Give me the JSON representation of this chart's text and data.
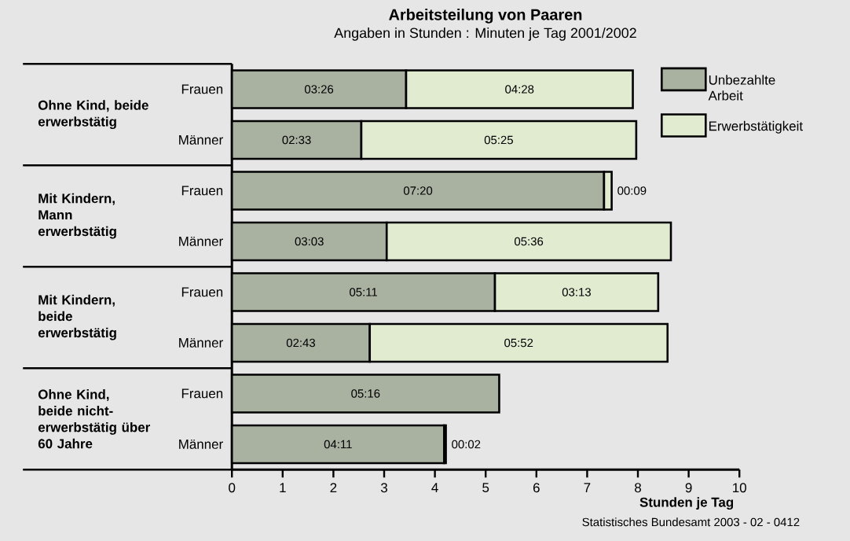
{
  "chart_data": {
    "type": "bar",
    "orientation": "horizontal",
    "stacked": true,
    "title": "Arbeitsteilung von Paaren",
    "subtitle": "Angaben in Stunden : Minuten je Tag 2001/2002",
    "xlabel": "Stunden je Tag",
    "categories": [
      "Frauen",
      "Männer",
      "Frauen",
      "Männer",
      "Frauen",
      "Männer",
      "Frauen",
      "Männer"
    ],
    "series": [
      {
        "name": "Unbezahlte Arbeit",
        "color": "#a9b1a1",
        "values": [
          3.433,
          2.55,
          7.333,
          3.05,
          5.183,
          2.717,
          5.267,
          4.183
        ],
        "value_labels": [
          "03:26",
          "02:33",
          "07:20",
          "03:03",
          "05:11",
          "02:43",
          "05:16",
          "04:11"
        ]
      },
      {
        "name": "Erwerbstätigkeit",
        "color": "#e1ebd0",
        "values": [
          4.467,
          5.417,
          0.15,
          5.6,
          3.217,
          5.867,
          null,
          0.033
        ],
        "value_labels": [
          "04:28",
          "05:25",
          "00:09",
          "05:36",
          "03:13",
          "05:52",
          null,
          "00:02"
        ]
      }
    ],
    "xlim": [
      0,
      10
    ],
    "xticks": [
      0,
      1,
      2,
      3,
      4,
      5,
      6,
      7,
      8,
      9,
      10
    ],
    "legend": "top right",
    "annotations": [
      "Ohne Kind, beide erwerbstätig",
      "Mit Kindern, Mann erwerbstätig",
      "Mit Kindern, beide erwerbstätig",
      "Ohne Kind, beide nicht-erwerbstätig über 60 Jahre",
      "Statistisches Bundesamt 2003 - 02 - 0412"
    ]
  }
}
